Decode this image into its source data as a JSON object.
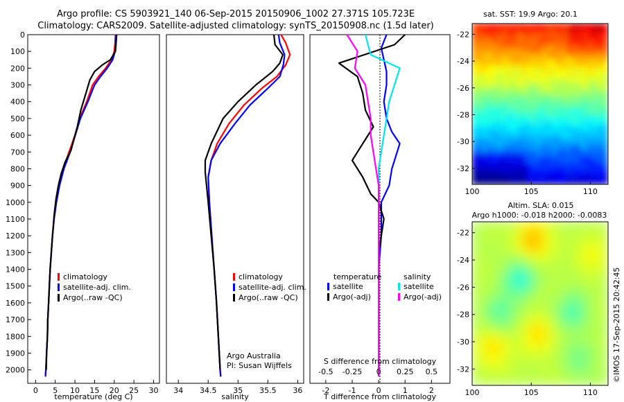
{
  "header": {
    "line1": "Argo profile: CS 5903921_140 06-Sep-2015 20150906_1002 27.371S 105.723E",
    "line2": "Climatology: CARS2009. Satellite-adjusted climatology: synTS_20150908.nc (1.5d later)"
  },
  "footer": {
    "stamp": "©IMOS 17-Sep-2015 20:42:45"
  },
  "colors": {
    "climatology": "#ff0000",
    "satellite": "#0000ff",
    "argo": "#000000",
    "sal_satellite": "#00e5ee",
    "sal_argo": "#ff00ff"
  },
  "chart_data": [
    {
      "id": "temperature",
      "type": "line",
      "xlabel": "temperature (deg C)",
      "xlim": [
        -2,
        31.5
      ],
      "ylim": [
        2080,
        0
      ],
      "xticks": [
        0,
        5,
        10,
        15,
        20,
        25,
        30
      ],
      "yticks": [
        0,
        100,
        200,
        300,
        400,
        500,
        600,
        700,
        800,
        900,
        1000,
        1100,
        1200,
        1300,
        1400,
        1500,
        1600,
        1700,
        1800,
        1900,
        2000
      ],
      "legend": [
        {
          "label": "climatology",
          "color": "#ff0000"
        },
        {
          "label": "satellite-adj. clim.",
          "color": "#0000ff"
        },
        {
          "label": "Argo(..raw -QC)",
          "color": "#000000"
        }
      ],
      "series": [
        {
          "name": "climatology",
          "color": "#ff0000",
          "points": [
            [
              20.3,
              0
            ],
            [
              20.2,
              50
            ],
            [
              20.0,
              100
            ],
            [
              19.3,
              150
            ],
            [
              17.8,
              200
            ],
            [
              16.0,
              250
            ],
            [
              14.5,
              300
            ],
            [
              13.0,
              400
            ],
            [
              11.2,
              500
            ],
            [
              10.0,
              600
            ],
            [
              8.5,
              700
            ],
            [
              7.0,
              800
            ],
            [
              6.0,
              900
            ],
            [
              5.2,
              1000
            ],
            [
              4.7,
              1100
            ],
            [
              4.3,
              1200
            ],
            [
              4.0,
              1300
            ],
            [
              3.7,
              1400
            ],
            [
              3.5,
              1500
            ],
            [
              3.3,
              1600
            ],
            [
              3.1,
              1700
            ],
            [
              3.0,
              1800
            ],
            [
              2.8,
              1900
            ],
            [
              2.6,
              2000
            ],
            [
              2.5,
              2040
            ]
          ]
        },
        {
          "name": "satellite",
          "color": "#0000ff",
          "points": [
            [
              20.5,
              0
            ],
            [
              20.4,
              50
            ],
            [
              20.2,
              100
            ],
            [
              19.6,
              150
            ],
            [
              18.2,
              200
            ],
            [
              16.5,
              250
            ],
            [
              15.0,
              300
            ],
            [
              13.3,
              400
            ],
            [
              11.4,
              500
            ],
            [
              10.1,
              600
            ],
            [
              8.8,
              700
            ],
            [
              7.2,
              800
            ],
            [
              6.1,
              900
            ],
            [
              5.3,
              1000
            ],
            [
              4.7,
              1100
            ],
            [
              4.3,
              1200
            ],
            [
              4.0,
              1300
            ],
            [
              3.7,
              1400
            ],
            [
              3.5,
              1500
            ],
            [
              3.3,
              1600
            ],
            [
              3.1,
              1700
            ],
            [
              3.0,
              1800
            ],
            [
              2.8,
              1900
            ],
            [
              2.6,
              2000
            ],
            [
              2.5,
              2040
            ]
          ]
        },
        {
          "name": "Argo",
          "color": "#000000",
          "points": [
            [
              20.6,
              0
            ],
            [
              20.5,
              40
            ],
            [
              20.3,
              100
            ],
            [
              19.0,
              150
            ],
            [
              17.0,
              180
            ],
            [
              15.0,
              220
            ],
            [
              13.8,
              270
            ],
            [
              12.8,
              350
            ],
            [
              11.5,
              450
            ],
            [
              10.6,
              550
            ],
            [
              9.8,
              620
            ],
            [
              9.0,
              690
            ],
            [
              7.5,
              760
            ],
            [
              6.5,
              830
            ],
            [
              5.8,
              900
            ],
            [
              5.2,
              980
            ],
            [
              4.7,
              1080
            ],
            [
              4.3,
              1200
            ],
            [
              4.0,
              1300
            ],
            [
              3.7,
              1400
            ],
            [
              3.5,
              1500
            ],
            [
              3.3,
              1600
            ],
            [
              3.1,
              1700
            ],
            [
              3.0,
              1800
            ],
            [
              2.8,
              1900
            ],
            [
              2.7,
              2000
            ]
          ]
        }
      ]
    },
    {
      "id": "salinity",
      "type": "line",
      "xlabel": "salinity",
      "xlim": [
        33.8,
        36.1
      ],
      "ylim": [
        2080,
        0
      ],
      "xticks": [
        34,
        34.5,
        35,
        35.5,
        36
      ],
      "legend": [
        {
          "label": "climatology",
          "color": "#ff0000"
        },
        {
          "label": "satellite-adj. clim.",
          "color": "#0000ff"
        },
        {
          "label": "Argo(..raw -QC)",
          "color": "#000000"
        }
      ],
      "annotation": [
        "Argo Australia",
        "PI: Susan Wijffels"
      ],
      "series": [
        {
          "name": "climatology",
          "color": "#ff0000",
          "points": [
            [
              35.72,
              0
            ],
            [
              35.8,
              50
            ],
            [
              35.87,
              120
            ],
            [
              35.8,
              180
            ],
            [
              35.65,
              250
            ],
            [
              35.4,
              320
            ],
            [
              35.1,
              420
            ],
            [
              34.85,
              530
            ],
            [
              34.65,
              650
            ],
            [
              34.55,
              750
            ],
            [
              34.5,
              850
            ],
            [
              34.52,
              1000
            ],
            [
              34.56,
              1200
            ],
            [
              34.6,
              1400
            ],
            [
              34.64,
              1600
            ],
            [
              34.67,
              1800
            ],
            [
              34.7,
              2000
            ],
            [
              34.71,
              2040
            ]
          ]
        },
        {
          "name": "satellite",
          "color": "#0000ff",
          "points": [
            [
              35.68,
              0
            ],
            [
              35.7,
              50
            ],
            [
              35.78,
              120
            ],
            [
              35.76,
              180
            ],
            [
              35.7,
              250
            ],
            [
              35.5,
              320
            ],
            [
              35.2,
              420
            ],
            [
              34.95,
              530
            ],
            [
              34.7,
              650
            ],
            [
              34.55,
              750
            ],
            [
              34.5,
              850
            ],
            [
              34.52,
              1000
            ],
            [
              34.56,
              1200
            ],
            [
              34.6,
              1400
            ],
            [
              34.64,
              1600
            ],
            [
              34.67,
              1800
            ],
            [
              34.7,
              2000
            ],
            [
              34.71,
              2040
            ]
          ]
        },
        {
          "name": "Argo",
          "color": "#000000",
          "points": [
            [
              35.6,
              0
            ],
            [
              35.62,
              60
            ],
            [
              35.75,
              120
            ],
            [
              35.7,
              170
            ],
            [
              35.58,
              220
            ],
            [
              35.3,
              300
            ],
            [
              35.0,
              400
            ],
            [
              34.75,
              500
            ],
            [
              34.55,
              650
            ],
            [
              34.45,
              750
            ],
            [
              34.45,
              820
            ],
            [
              34.5,
              1000
            ],
            [
              34.55,
              1200
            ],
            [
              34.6,
              1400
            ],
            [
              34.64,
              1600
            ],
            [
              34.67,
              1800
            ],
            [
              34.7,
              2000
            ]
          ]
        }
      ]
    },
    {
      "id": "differences",
      "type": "line",
      "xlabel": "T difference from climatology",
      "xlabel_top": "S difference from climatology",
      "xlim": [
        -2.6,
        2.7
      ],
      "ylim": [
        2080,
        0
      ],
      "xticks": [
        -2,
        -1,
        0,
        1,
        2
      ],
      "xticks_S": [
        -0.5,
        -0.25,
        0,
        0.25,
        0.5
      ],
      "legend_left_title": "temperature",
      "legend_right_title": "salinity",
      "legend": [
        {
          "label": "satellite",
          "color": "#0000ff",
          "col": 0
        },
        {
          "label": "Argo(-adj)",
          "color": "#000000",
          "col": 0
        },
        {
          "label": "satellite",
          "color": "#00e5ee",
          "col": 1
        },
        {
          "label": "Argo(-adj)",
          "color": "#ff00ff",
          "col": 1
        }
      ],
      "series": [
        {
          "name": "T satellite",
          "color": "#0000ff",
          "points": [
            [
              0.3,
              0
            ],
            [
              0.1,
              80
            ],
            [
              0.2,
              150
            ],
            [
              0.3,
              220
            ],
            [
              0.3,
              300
            ],
            [
              0.2,
              400
            ],
            [
              0.3,
              500
            ],
            [
              0.5,
              580
            ],
            [
              0.8,
              650
            ],
            [
              0.7,
              700
            ],
            [
              0.5,
              800
            ],
            [
              0.4,
              900
            ],
            [
              0.1,
              1000
            ],
            [
              0.1,
              1200
            ],
            [
              0.0,
              1400
            ],
            [
              0.0,
              1600
            ],
            [
              0.0,
              1800
            ],
            [
              0.0,
              2040
            ]
          ]
        },
        {
          "name": "T Argo",
          "color": "#000000",
          "points": [
            [
              1.0,
              0
            ],
            [
              0.6,
              60
            ],
            [
              -1.5,
              170
            ],
            [
              -0.8,
              250
            ],
            [
              -0.6,
              350
            ],
            [
              -0.5,
              450
            ],
            [
              -0.2,
              550
            ],
            [
              -0.6,
              650
            ],
            [
              -1.0,
              750
            ],
            [
              -0.6,
              850
            ],
            [
              -0.3,
              950
            ],
            [
              0.0,
              1000
            ],
            [
              0.2,
              1100
            ],
            [
              0.1,
              1200
            ],
            [
              0.0,
              1300
            ],
            [
              0.0,
              1500
            ],
            [
              0.0,
              2000
            ]
          ]
        },
        {
          "name": "S satellite",
          "color": "#00e5ee",
          "points": [
            [
              -0.5,
              0
            ],
            [
              -0.3,
              120
            ],
            [
              0.8,
              200
            ],
            [
              0.6,
              300
            ],
            [
              0.4,
              400
            ],
            [
              0.3,
              500
            ],
            [
              0.2,
              600
            ],
            [
              0.1,
              700
            ],
            [
              0.0,
              800
            ],
            [
              0.0,
              1000
            ],
            [
              0.0,
              1200
            ],
            [
              0.0,
              1400
            ],
            [
              0.0,
              2040
            ]
          ]
        },
        {
          "name": "S Argo",
          "color": "#ff00ff",
          "points": [
            [
              -1.2,
              0
            ],
            [
              -0.8,
              100
            ],
            [
              -0.9,
              200
            ],
            [
              -0.5,
              300
            ],
            [
              -0.4,
              400
            ],
            [
              -0.3,
              500
            ],
            [
              -0.3,
              600
            ],
            [
              -0.2,
              700
            ],
            [
              -0.1,
              800
            ],
            [
              0.0,
              900
            ],
            [
              0.0,
              1000
            ],
            [
              0.0,
              1400
            ],
            [
              0.0,
              2040
            ]
          ]
        }
      ]
    },
    {
      "id": "sst_map",
      "type": "heatmap",
      "title": "sat. SST: 19.9 Argo: 20.1",
      "colormap": "jet",
      "xlim": [
        100,
        111.5
      ],
      "ylim": [
        -33.2,
        -21.2
      ],
      "xticks": [
        100,
        105,
        110
      ],
      "yticks": [
        -22,
        -24,
        -26,
        -28,
        -30,
        -32
      ]
    },
    {
      "id": "sla_map",
      "type": "heatmap",
      "title_line1": "Altim. SLA: 0.015",
      "title_line2": "Argo h1000: -0.018 h2000: -0.0083",
      "colormap": "jet",
      "xlim": [
        100,
        111.5
      ],
      "ylim": [
        -33.2,
        -21.2
      ],
      "xticks": [
        100,
        105,
        110
      ],
      "yticks": [
        -22,
        -24,
        -26,
        -28,
        -30,
        -32
      ]
    }
  ]
}
